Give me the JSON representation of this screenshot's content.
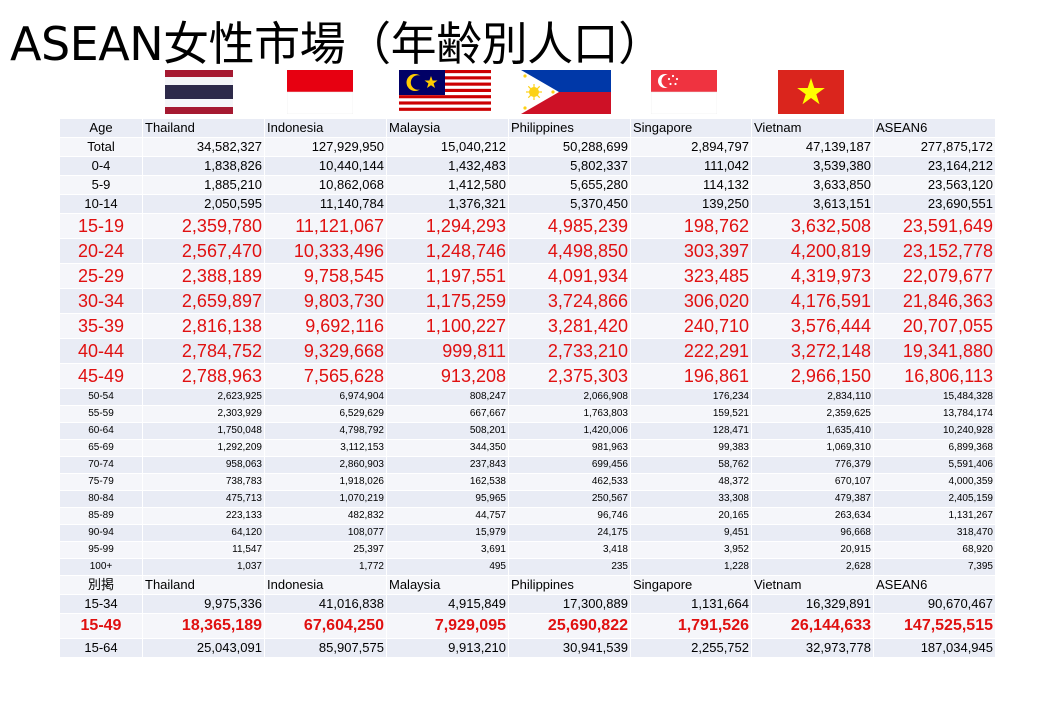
{
  "title": "ASEAN女性市場（年齢別人口）",
  "flags": [
    "thailand-flag",
    "indonesia-flag",
    "malaysia-flag",
    "philippines-flag",
    "singapore-flag",
    "vietnam-flag"
  ],
  "colors": {
    "highlight_text": "#e01010",
    "row_band_a": "#e9ecf5",
    "row_band_b": "#f5f6fa"
  },
  "table": {
    "header": [
      "Age",
      "Thailand",
      "Indonesia",
      "Malaysia",
      "Philippines",
      "Singapore",
      "Vietnam",
      "ASEAN6"
    ],
    "rows": [
      {
        "style": "sm",
        "cells": [
          "Total",
          "34,582,327",
          "127,929,950",
          "15,040,212",
          "50,288,699",
          "2,894,797",
          "47,139,187",
          "277,875,172"
        ]
      },
      {
        "style": "sm",
        "cells": [
          "0-4",
          "1,838,826",
          "10,440,144",
          "1,432,483",
          "5,802,337",
          "111,042",
          "3,539,380",
          "23,164,212"
        ]
      },
      {
        "style": "sm",
        "cells": [
          "5-9",
          "1,885,210",
          "10,862,068",
          "1,412,580",
          "5,655,280",
          "114,132",
          "3,633,850",
          "23,563,120"
        ]
      },
      {
        "style": "sm",
        "cells": [
          "10-14",
          "2,050,595",
          "11,140,784",
          "1,376,321",
          "5,370,450",
          "139,250",
          "3,613,151",
          "23,690,551"
        ]
      },
      {
        "style": "big",
        "cells": [
          "15-19",
          "2,359,780",
          "11,121,067",
          "1,294,293",
          "4,985,239",
          "198,762",
          "3,632,508",
          "23,591,649"
        ]
      },
      {
        "style": "big",
        "cells": [
          "20-24",
          "2,567,470",
          "10,333,496",
          "1,248,746",
          "4,498,850",
          "303,397",
          "4,200,819",
          "23,152,778"
        ]
      },
      {
        "style": "big",
        "cells": [
          "25-29",
          "2,388,189",
          "9,758,545",
          "1,197,551",
          "4,091,934",
          "323,485",
          "4,319,973",
          "22,079,677"
        ]
      },
      {
        "style": "big",
        "cells": [
          "30-34",
          "2,659,897",
          "9,803,730",
          "1,175,259",
          "3,724,866",
          "306,020",
          "4,176,591",
          "21,846,363"
        ]
      },
      {
        "style": "big",
        "cells": [
          "35-39",
          "2,816,138",
          "9,692,116",
          "1,100,227",
          "3,281,420",
          "240,710",
          "3,576,444",
          "20,707,055"
        ]
      },
      {
        "style": "big",
        "cells": [
          "40-44",
          "2,784,752",
          "9,329,668",
          "999,811",
          "2,733,210",
          "222,291",
          "3,272,148",
          "19,341,880"
        ]
      },
      {
        "style": "big",
        "cells": [
          "45-49",
          "2,788,963",
          "7,565,628",
          "913,208",
          "2,375,303",
          "196,861",
          "2,966,150",
          "16,806,113"
        ]
      },
      {
        "style": "tn",
        "cells": [
          "50-54",
          "2,623,925",
          "6,974,904",
          "808,247",
          "2,066,908",
          "176,234",
          "2,834,110",
          "15,484,328"
        ]
      },
      {
        "style": "tn",
        "cells": [
          "55-59",
          "2,303,929",
          "6,529,629",
          "667,667",
          "1,763,803",
          "159,521",
          "2,359,625",
          "13,784,174"
        ]
      },
      {
        "style": "tn",
        "cells": [
          "60-64",
          "1,750,048",
          "4,798,792",
          "508,201",
          "1,420,006",
          "128,471",
          "1,635,410",
          "10,240,928"
        ]
      },
      {
        "style": "tn",
        "cells": [
          "65-69",
          "1,292,209",
          "3,112,153",
          "344,350",
          "981,963",
          "99,383",
          "1,069,310",
          "6,899,368"
        ]
      },
      {
        "style": "tn",
        "cells": [
          "70-74",
          "958,063",
          "2,860,903",
          "237,843",
          "699,456",
          "58,762",
          "776,379",
          "5,591,406"
        ]
      },
      {
        "style": "tn",
        "cells": [
          "75-79",
          "738,783",
          "1,918,026",
          "162,538",
          "462,533",
          "48,372",
          "670,107",
          "4,000,359"
        ]
      },
      {
        "style": "tn",
        "cells": [
          "80-84",
          "475,713",
          "1,070,219",
          "95,965",
          "250,567",
          "33,308",
          "479,387",
          "2,405,159"
        ]
      },
      {
        "style": "tn",
        "cells": [
          "85-89",
          "223,133",
          "482,832",
          "44,757",
          "96,746",
          "20,165",
          "263,634",
          "1,131,267"
        ]
      },
      {
        "style": "tn",
        "cells": [
          "90-94",
          "64,120",
          "108,077",
          "15,979",
          "24,175",
          "9,451",
          "96,668",
          "318,470"
        ]
      },
      {
        "style": "tn",
        "cells": [
          "95-99",
          "11,547",
          "25,397",
          "3,691",
          "3,418",
          "3,952",
          "20,915",
          "68,920"
        ]
      },
      {
        "style": "tn",
        "cells": [
          "100+",
          "1,037",
          "1,772",
          "495",
          "235",
          "1,228",
          "2,628",
          "7,395"
        ]
      },
      {
        "style": "hd",
        "cells": [
          "別掲",
          "Thailand",
          "Indonesia",
          "Malaysia",
          "Philippines",
          "Singapore",
          "Vietnam",
          "ASEAN6"
        ]
      },
      {
        "style": "sm",
        "cells": [
          "15-34",
          "9,975,336",
          "41,016,838",
          "4,915,849",
          "17,300,889",
          "1,131,664",
          "16,329,891",
          "90,670,467"
        ]
      },
      {
        "style": "hl",
        "cells": [
          "15-49",
          "18,365,189",
          "67,604,250",
          "7,929,095",
          "25,690,822",
          "1,791,526",
          "26,144,633",
          "147,525,515"
        ]
      },
      {
        "style": "sm",
        "cells": [
          "15-64",
          "25,043,091",
          "85,907,575",
          "9,913,210",
          "30,941,539",
          "2,255,752",
          "32,973,778",
          "187,034,945"
        ]
      }
    ]
  }
}
